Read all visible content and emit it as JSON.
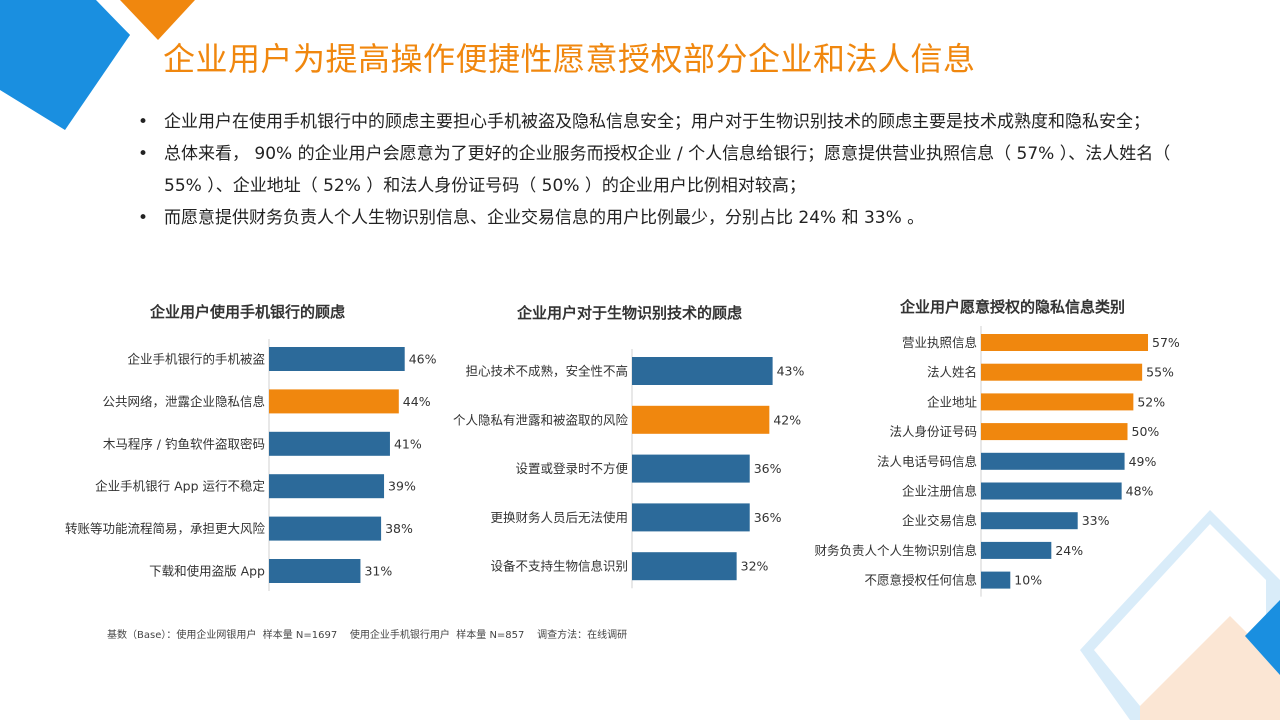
{
  "colors": {
    "accent": "#f0870e",
    "blue_bar": "#2c6a9a",
    "orange_bar": "#f0870e",
    "deco_blue": "#1a8fe0",
    "deco_light": "#d9ecf9",
    "deco_peach": "#fbe6d4"
  },
  "title": "企业用户为提高操作便捷性愿意授权部分企业和法人信息",
  "bullets": [
    {
      "dot": "•",
      "text": "企业用户在使用手机银行中的顾虑主要担心手机被盗及隐私信息安全；用户对于生物识别技术的顾虑主要是技术成熟度和隐私安全；"
    },
    {
      "dot": "•",
      "text": "总体来看， 90% 的企业用户会愿意为了更好的企业服务而授权企业 / 个人信息给银行；愿意提供营业执照信息（ 57% ）、法人姓名（ 55% ）、企业地址（ 52% ）和法人身份证号码（ 50% ）的企业用户比例相对较高；"
    },
    {
      "dot": "•",
      "text": "而愿意提供财务负责人个人生物识别信息、企业交易信息的用户比例最少，分别占比 24% 和 33% 。"
    }
  ],
  "chart_data": [
    {
      "type": "bar",
      "orientation": "horizontal",
      "title": "企业用户使用手机银行的顾虑",
      "categories": [
        "企业手机银行的手机被盗",
        "公共网络，泄露企业隐私信息",
        "木马程序 / 钓鱼软件盗取密码",
        "企业手机银行 App 运行不稳定",
        "转账等功能流程简易，承担更大风险",
        "下载和使用盗版 App"
      ],
      "values": [
        46,
        44,
        41,
        39,
        38,
        31
      ],
      "labels": [
        "46%",
        "44%",
        "41%",
        "39%",
        "38%",
        "31%"
      ],
      "highlight": [
        false,
        true,
        false,
        false,
        false,
        false
      ]
    },
    {
      "type": "bar",
      "orientation": "horizontal",
      "title": "企业用户对于生物识别技术的顾虑",
      "categories": [
        "担心技术不成熟，安全性不高",
        "个人隐私有泄露和被盗取的风险",
        "设置或登录时不方便",
        "更换财务人员后无法使用",
        "设备不支持生物信息识别"
      ],
      "values": [
        43,
        42,
        36,
        36,
        32
      ],
      "labels": [
        "43%",
        "42%",
        "36%",
        "36%",
        "32%"
      ],
      "highlight": [
        false,
        true,
        false,
        false,
        false
      ]
    },
    {
      "type": "bar",
      "orientation": "horizontal",
      "title": "企业用户愿意授权的隐私信息类别",
      "categories": [
        "营业执照信息",
        "法人姓名",
        "企业地址",
        "法人身份证号码",
        "法人电话号码信息",
        "企业注册信息",
        "企业交易信息",
        "财务负责人个人生物识别信息",
        "不愿意授权任何信息"
      ],
      "values": [
        57,
        55,
        52,
        50,
        49,
        48,
        33,
        24,
        10
      ],
      "labels": [
        "57%",
        "55%",
        "52%",
        "50%",
        "49%",
        "48%",
        "33%",
        "24%",
        "10%"
      ],
      "highlight": [
        true,
        true,
        true,
        true,
        false,
        false,
        false,
        false,
        false
      ]
    }
  ],
  "footnote": "基数（Base）：使用企业网银用户  样本量 N=1697    使用企业手机银行用户  样本量 N=857    调查方法：在线调研"
}
